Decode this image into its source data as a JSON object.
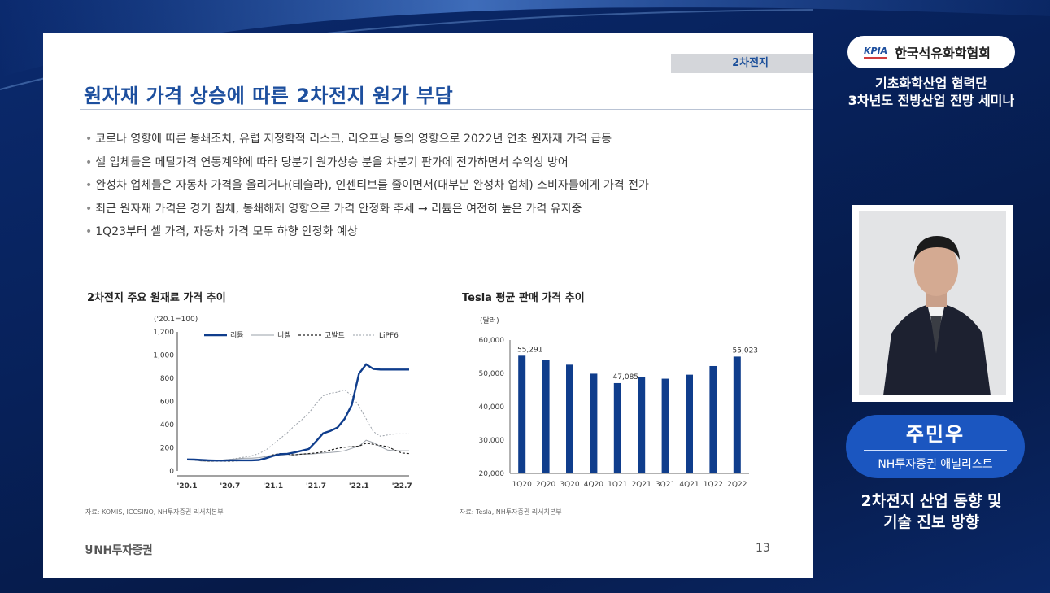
{
  "slide": {
    "section_tag": "2차전지",
    "title": "원자재 가격 상승에 따른 2차전지 원가 부담",
    "bullets": [
      "코로나 영향에 따른 봉쇄조치, 유럽 지정학적 리스크, 리오프닝 등의 영향으로 2022년 연초 원자재 가격 급등",
      "셀 업체들은 메탈가격 연동계약에 따라 당분기 원가상승 분을 차분기 판가에 전가하면서 수익성 방어",
      "완성차 업체들은 자동차 가격을 올리거나(테슬라), 인센티브를 줄이면서(대부분 완성차 업체) 소비자들에게 가격 전가",
      "최근 원자재 가격은 경기 침체, 봉쇄해제 영향으로 가격 안정화 추세 → 리튬은 여전히 높은 가격 유지중",
      "1Q23부터 셀 가격, 자동차 가격 모두 하향 안정화 예상"
    ],
    "footer_logo": "NH투자증권",
    "page_number": "13"
  },
  "chart_data": [
    {
      "type": "line",
      "title": "2차전지 주요 원재료 가격 추이",
      "unit_label": "('20.1=100)",
      "source": "자료: KOMIS, ICCSINO, NH투자증권 리서치본부",
      "x_tick_labels": [
        "'20.1",
        "'20.7",
        "'21.1",
        "'21.7",
        "'22.1",
        "'22.7"
      ],
      "x_ticks_month_index": [
        0,
        6,
        12,
        18,
        24,
        30
      ],
      "ylim": [
        0,
        1200
      ],
      "y_ticks": [
        0,
        200,
        400,
        600,
        800,
        1000,
        1200
      ],
      "y_tick_labels": [
        "0",
        "200",
        "400",
        "600",
        "800",
        "1,000",
        "1,200"
      ],
      "legend_position": "top",
      "series": [
        {
          "name": "리튬",
          "color": "#0f3d8c",
          "style": "solid-thick",
          "values": [
            100,
            98,
            95,
            92,
            90,
            90,
            92,
            92,
            92,
            92,
            95,
            110,
            130,
            145,
            148,
            160,
            175,
            190,
            255,
            325,
            345,
            375,
            450,
            570,
            840,
            920,
            880,
            875,
            875,
            875,
            875,
            875
          ]
        },
        {
          "name": "니켈",
          "color": "#9aa0a8",
          "style": "solid-thin",
          "values": [
            100,
            95,
            85,
            85,
            88,
            95,
            100,
            105,
            110,
            110,
            115,
            125,
            140,
            135,
            130,
            140,
            145,
            145,
            150,
            155,
            160,
            165,
            175,
            195,
            215,
            265,
            245,
            210,
            180,
            175,
            175,
            175
          ]
        },
        {
          "name": "코발트",
          "color": "#222222",
          "style": "dashed",
          "values": [
            100,
            95,
            90,
            85,
            85,
            85,
            85,
            88,
            90,
            92,
            95,
            110,
            140,
            150,
            145,
            140,
            145,
            150,
            155,
            165,
            180,
            195,
            205,
            210,
            215,
            240,
            230,
            220,
            210,
            180,
            155,
            150
          ]
        },
        {
          "name": "LiPF6",
          "color": "#9aa0a8",
          "style": "dotted",
          "values": [
            100,
            98,
            95,
            92,
            92,
            95,
            100,
            110,
            120,
            130,
            150,
            180,
            230,
            280,
            330,
            390,
            440,
            500,
            580,
            650,
            670,
            680,
            700,
            650,
            560,
            450,
            340,
            300,
            310,
            320,
            320,
            320
          ]
        }
      ]
    },
    {
      "type": "bar",
      "title": "Tesla 평균 판매 가격 추이",
      "unit_label": "(달러)",
      "source": "자료: Tesla, NH투자증권 리서치본부",
      "categories": [
        "1Q20",
        "2Q20",
        "3Q20",
        "4Q20",
        "1Q21",
        "2Q21",
        "3Q21",
        "4Q21",
        "1Q22",
        "2Q22"
      ],
      "values": [
        55291,
        54100,
        52600,
        49900,
        47085,
        49000,
        48400,
        49600,
        52200,
        55023
      ],
      "data_labels": {
        "0": "55,291",
        "4": "47,085",
        "9": "55,023"
      },
      "ylim": [
        20000,
        60000
      ],
      "y_ticks": [
        20000,
        30000,
        40000,
        50000,
        60000
      ],
      "y_tick_labels": [
        "20,000",
        "30,000",
        "40,000",
        "50,000",
        "60,000"
      ],
      "bar_color": "#0f3d8c"
    }
  ],
  "panel": {
    "badge_logo": "KPIA",
    "badge_name": "한국석유화학협회",
    "seminar_line1": "기초화학산업 협력단",
    "seminar_line2": "3차년도 전방산업 전망 세미나",
    "speaker_name": "주민우",
    "speaker_affiliation": "NH투자증권 애널리스트",
    "topic_line1": "2차전지 산업 동향 및",
    "topic_line2": "기술 진보 방향"
  }
}
